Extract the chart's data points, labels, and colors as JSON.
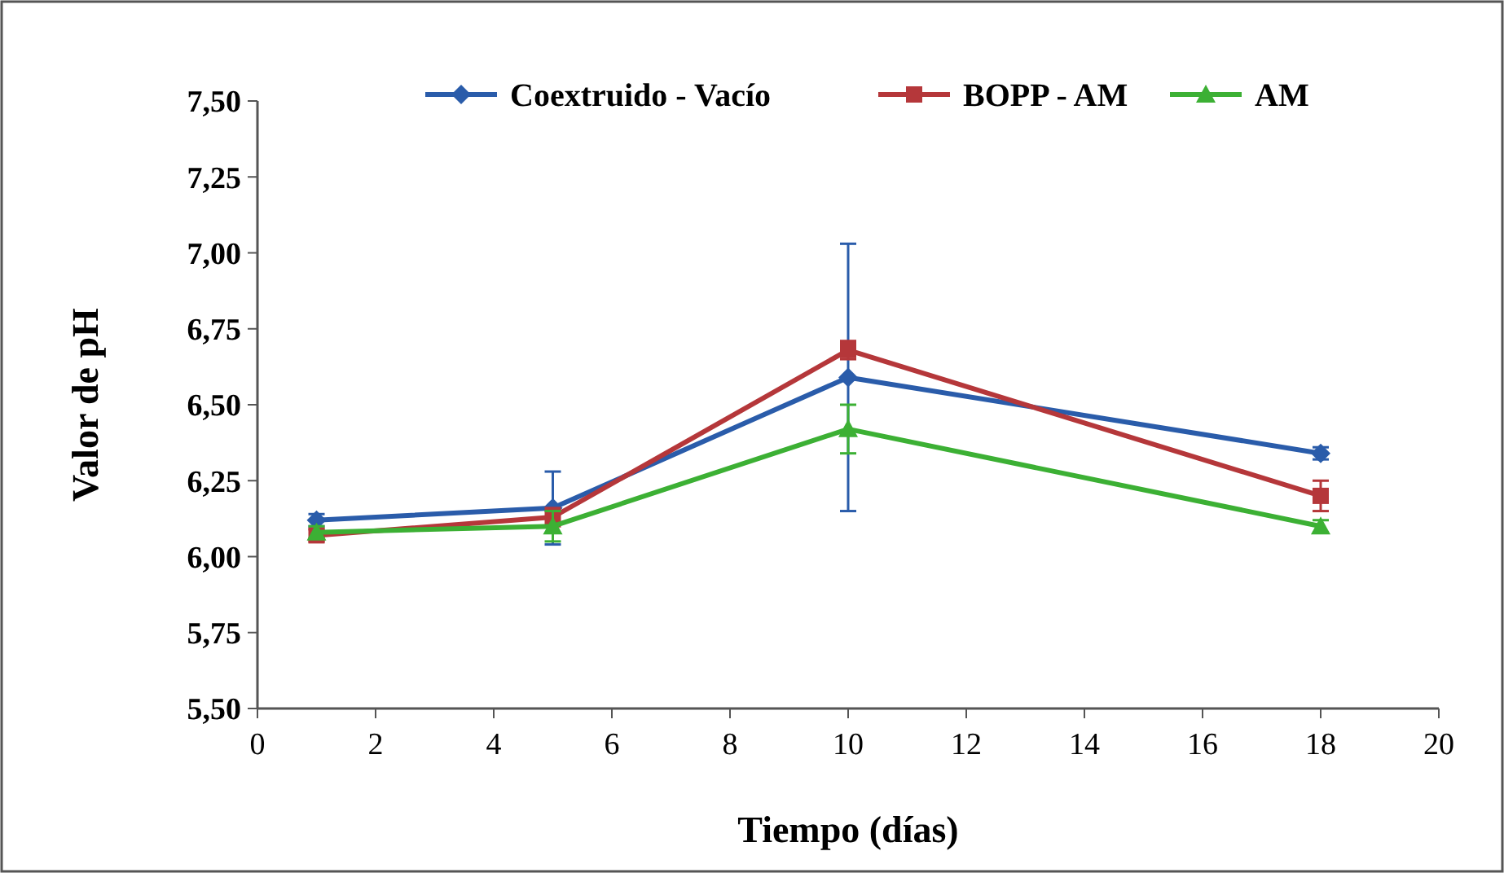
{
  "chart_data": {
    "type": "line",
    "xlabel": "Tiempo (días)",
    "ylabel": "Valor de pH",
    "x": [
      1,
      5,
      10,
      18
    ],
    "series": [
      {
        "name": "Coextruido - Vacío",
        "color": "#2a5caa",
        "marker": "diamond",
        "values": [
          6.12,
          6.16,
          6.59,
          6.34
        ],
        "errors": [
          0.02,
          0.12,
          0.44,
          0.02
        ]
      },
      {
        "name": "BOPP - AM",
        "color": "#b5373a",
        "marker": "square",
        "values": [
          6.07,
          6.13,
          6.68,
          6.2
        ],
        "errors": [
          0.02,
          0.03,
          0.03,
          0.05
        ]
      },
      {
        "name": "AM",
        "color": "#3cb034",
        "marker": "triangle",
        "values": [
          6.08,
          6.1,
          6.42,
          6.1
        ],
        "errors": [
          0.02,
          0.05,
          0.08,
          0.02
        ]
      }
    ],
    "xlim": [
      0,
      20
    ],
    "xticks": [
      0,
      2,
      4,
      6,
      8,
      10,
      12,
      14,
      16,
      18,
      20
    ],
    "ylim": [
      5.5,
      7.5
    ],
    "yticks": [
      {
        "value": 5.5,
        "label": "5,50"
      },
      {
        "value": 5.75,
        "label": "5,75"
      },
      {
        "value": 6,
        "label": "6,00"
      },
      {
        "value": 6.25,
        "label": "6,25"
      },
      {
        "value": 6.5,
        "label": "6,50"
      },
      {
        "value": 6.75,
        "label": "6,75"
      },
      {
        "value": 7,
        "label": "7,00"
      },
      {
        "value": 7.25,
        "label": "7,25"
      },
      {
        "value": 7.5,
        "label": "7,50"
      }
    ],
    "grid": false,
    "legend": "top"
  }
}
